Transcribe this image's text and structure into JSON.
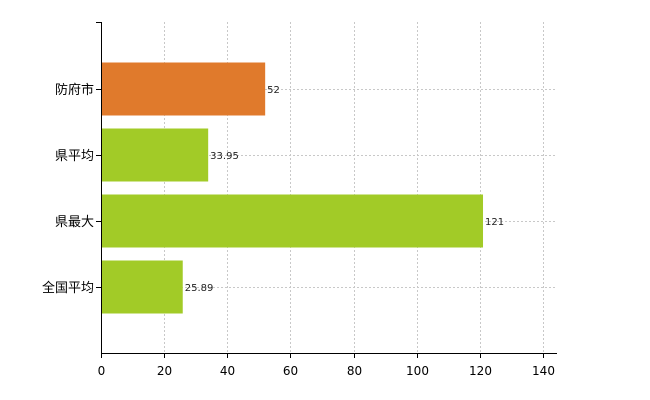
{
  "chart_data": {
    "type": "bar",
    "orientation": "horizontal",
    "categories": [
      "防府市",
      "県平均",
      "県最大",
      "全国平均"
    ],
    "values": [
      52,
      33.95,
      121,
      25.89
    ],
    "value_labels": [
      "52",
      "33.95",
      "121",
      "25.89"
    ],
    "bar_colors": [
      "#e07a2c",
      "#a2cb27",
      "#a2cb27",
      "#a2cb27"
    ],
    "xlim": [
      0,
      140
    ],
    "x_ticks": [
      0,
      20,
      40,
      60,
      80,
      100,
      120,
      140
    ],
    "x_tick_labels": [
      "0",
      "20",
      "40",
      "60",
      "80",
      "100",
      "120",
      "140"
    ],
    "grid": true,
    "grid_style": "dashed",
    "title": "",
    "xlabel": "",
    "ylabel": ""
  }
}
